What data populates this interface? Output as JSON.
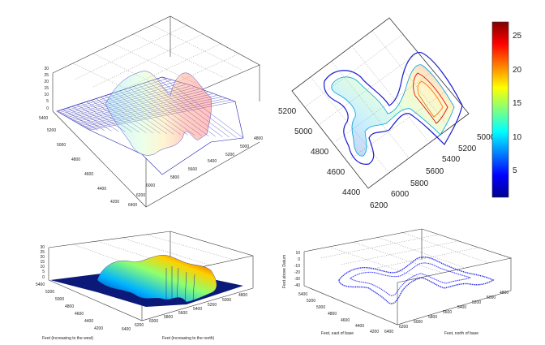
{
  "chart_data": [
    {
      "panel": "top-left",
      "type": "surface",
      "style": "mesh",
      "title": "",
      "x_ticks": [
        "4800",
        "5000",
        "5200",
        "5400",
        "5600",
        "5800",
        "6000",
        "6200",
        "6400"
      ],
      "y_ticks": [
        "5400",
        "5200",
        "5000",
        "4800",
        "4600",
        "4400",
        "4200"
      ],
      "z_ticks": [
        "0",
        "5",
        "10",
        "15",
        "20",
        "25",
        "30"
      ],
      "zlim": [
        0,
        30
      ],
      "grid": true
    },
    {
      "panel": "top-right",
      "type": "contour",
      "title": "",
      "x_ticks": [
        "5000",
        "5200",
        "5400",
        "5600",
        "5800",
        "6000",
        "6200"
      ],
      "y_ticks": [
        "5200",
        "5000",
        "4800",
        "4600",
        "4400"
      ],
      "colorbar": {
        "ticks": [
          "5",
          "10",
          "15",
          "20",
          "25"
        ],
        "range": [
          1,
          27
        ]
      },
      "grid": true
    },
    {
      "panel": "bottom-left",
      "type": "surface",
      "style": "filled",
      "title": "",
      "x_ticks": [
        "4800",
        "5000",
        "5200",
        "5400",
        "5600",
        "5800",
        "6000",
        "6200",
        "6400"
      ],
      "y_ticks": [
        "5400",
        "5200",
        "5000",
        "4800",
        "4600",
        "4400",
        "4200"
      ],
      "z_ticks": [
        "0",
        "5",
        "10",
        "15",
        "20",
        "25",
        "30"
      ],
      "zlim": [
        0,
        30
      ],
      "xlabel": "Feet (increasing to the west)",
      "ylabel": "Feet (increasing to the north)",
      "grid": true
    },
    {
      "panel": "bottom-right",
      "type": "scatter3d",
      "title": "",
      "x_ticks": [
        "4800",
        "5000",
        "5200",
        "5400",
        "5600",
        "5800",
        "6000",
        "6200",
        "6400"
      ],
      "y_ticks": [
        "5400",
        "5200",
        "5000",
        "4800",
        "4600",
        "4400",
        "4200"
      ],
      "z_ticks": [
        "10",
        "0",
        "-10",
        "-20",
        "-30",
        "-40"
      ],
      "zlim": [
        -40,
        10
      ],
      "xlabel": "Feet, east of base",
      "ylabel": "Feet, north of base",
      "zlabel": "Feet above Datum",
      "grid": true
    }
  ]
}
